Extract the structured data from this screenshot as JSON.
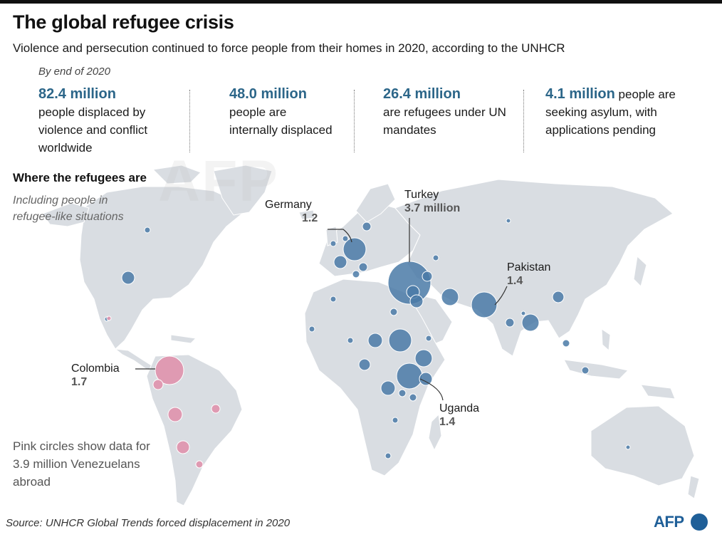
{
  "header": {
    "title": "The global refugee crisis",
    "subtitle": "Violence and persecution continued to force people from their homes in 2020, according to the UNHCR",
    "as_of": "By end of 2020"
  },
  "stats": [
    {
      "number": "82.4 million",
      "text": "people displaced by violence and conflict worldwide"
    },
    {
      "number": "48.0 million",
      "text": "people are internally displaced"
    },
    {
      "number": "26.4 million",
      "text": "are refugees under UN mandates"
    },
    {
      "number": "4.1 million",
      "text": "people are seeking asylum, with applications pending"
    }
  ],
  "section": {
    "title": "Where the refugees are",
    "note": "Including people in refugee-like situations"
  },
  "callouts": {
    "germany": {
      "country": "Germany",
      "value": "1.2"
    },
    "turkey": {
      "country": "Turkey",
      "value": "3.7 million"
    },
    "pakistan": {
      "country": "Pakistan",
      "value": "1.4"
    },
    "colombia": {
      "country": "Colombia",
      "value": "1.7"
    },
    "uganda": {
      "country": "Uganda",
      "value": "1.4"
    }
  },
  "legend": {
    "pink_note": "Pink circles show data for 3.9 million Venezuelans abroad",
    "colors": {
      "refugees": "#4a7aa7",
      "venezuelans": "#e08aa6",
      "land": "#d9dde2"
    }
  },
  "footer": {
    "source": "Source: UNHCR Global Trends forced displacement in 2020",
    "logo": "AFP"
  },
  "watermark": "AFP"
}
